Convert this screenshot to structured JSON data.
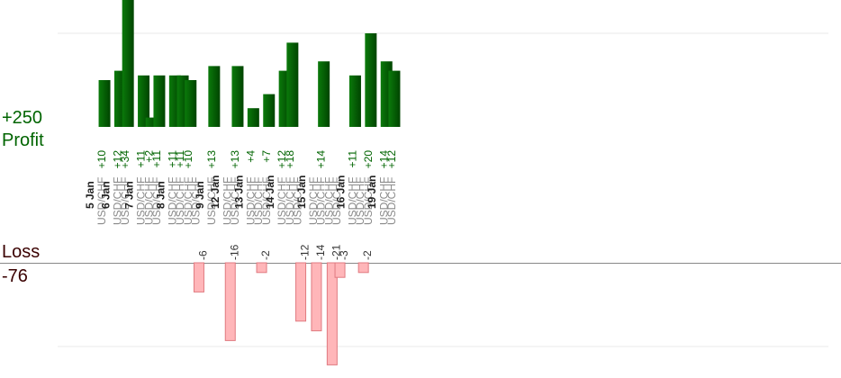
{
  "chart_data": {
    "type": "bar",
    "profit_total": "+250",
    "profit_label": "Profit",
    "loss_label": "Loss",
    "loss_total": "-76",
    "profit_color": "#006400",
    "loss_color": "#ffb6b9",
    "loss_border": "#e07a80",
    "grid": true,
    "date_groups": [
      {
        "date": "5 Jan",
        "trades": [
          {
            "pair": "USD/CHF",
            "profit": 10
          }
        ]
      },
      {
        "date": "6 Jan",
        "trades": [
          {
            "pair": "USD/CHF",
            "profit": 12
          },
          {
            "pair": "USD/CHF",
            "profit": 34
          }
        ]
      },
      {
        "date": "7 Jan",
        "trades": [
          {
            "pair": "USD/CHF",
            "profit": 11
          },
          {
            "pair": "USD/CHF",
            "profit": 2
          },
          {
            "pair": "USD/CHF",
            "profit": 11
          }
        ]
      },
      {
        "date": "8 Jan",
        "trades": [
          {
            "pair": "USD/CHF",
            "profit": 11
          },
          {
            "pair": "USD/CHF",
            "profit": 11
          },
          {
            "pair": "USD/CHF",
            "profit": 10
          },
          {
            "pair": "USD/CHF",
            "loss": -6
          }
        ]
      },
      {
        "date": "9 Jan",
        "trades": [
          {
            "pair": "USD/CHF",
            "profit": 13
          }
        ]
      },
      {
        "date": "12 Jan",
        "trades": [
          {
            "pair": "USD/CHF",
            "loss": -16
          },
          {
            "pair": "USD/CHF",
            "profit": 13
          }
        ]
      },
      {
        "date": "13 Jan",
        "trades": [
          {
            "pair": "USD/CHF",
            "profit": 4
          },
          {
            "pair": "USD/CHF",
            "loss": -2
          },
          {
            "pair": "USD/CHF",
            "profit": 7
          }
        ]
      },
      {
        "date": "14 Jan",
        "trades": [
          {
            "pair": "USD/CHF",
            "profit": 12
          },
          {
            "pair": "USD/CHF",
            "profit": 18
          },
          {
            "pair": "USD/CHF",
            "loss": -12
          }
        ]
      },
      {
        "date": "15 Jan",
        "trades": [
          {
            "pair": "USD/CHF",
            "loss": -14
          },
          {
            "pair": "USD/CHF",
            "profit": 14
          },
          {
            "pair": "USD/CHF",
            "loss": -21
          },
          {
            "pair": "USD/CHF",
            "loss": -3
          }
        ]
      },
      {
        "date": "16 Jan",
        "trades": [
          {
            "pair": "USD/CHF",
            "profit": 11
          },
          {
            "pair": "USD/CHF",
            "loss": -2
          },
          {
            "pair": "USD/CHF",
            "profit": 20
          }
        ]
      },
      {
        "date": "19 Jan",
        "trades": [
          {
            "pair": "USD/CHF",
            "profit": 14
          },
          {
            "pair": "USD/CHF",
            "profit": 12
          }
        ]
      }
    ]
  }
}
